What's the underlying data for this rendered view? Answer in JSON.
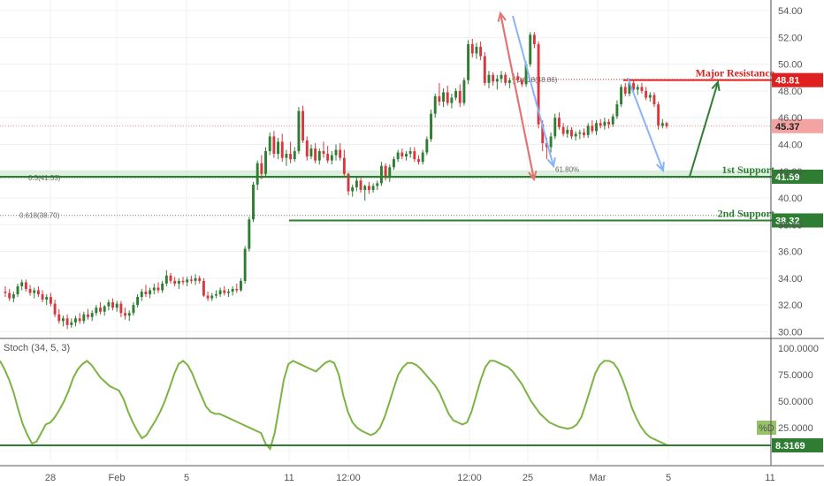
{
  "chart_data": {
    "type": "candlestick",
    "price": {
      "ylim": [
        29.5,
        54.8
      ],
      "yticks": [
        "54.00",
        "52.00",
        "50.00",
        "48.00",
        "46.00",
        "44.00",
        "42.00",
        "40.00",
        "38.00",
        "36.00",
        "34.00",
        "32.00",
        "30.00"
      ],
      "last_price": "45.37",
      "last_price_value": 45.37,
      "ohlc": [
        [
          33.0,
          33.4,
          32.6,
          32.9
        ],
        [
          32.9,
          33.2,
          32.3,
          32.5
        ],
        [
          32.5,
          33.0,
          32.2,
          32.8
        ],
        [
          32.8,
          33.6,
          32.6,
          33.4
        ],
        [
          33.4,
          33.9,
          33.1,
          33.7
        ],
        [
          33.7,
          33.9,
          33.0,
          33.2
        ],
        [
          33.2,
          33.5,
          32.7,
          32.9
        ],
        [
          32.9,
          33.3,
          32.5,
          33.1
        ],
        [
          33.1,
          33.4,
          32.6,
          32.8
        ],
        [
          32.8,
          33.1,
          32.2,
          32.4
        ],
        [
          32.4,
          32.8,
          32.0,
          32.6
        ],
        [
          32.6,
          32.9,
          31.9,
          32.1
        ],
        [
          32.1,
          32.4,
          31.1,
          31.3
        ],
        [
          31.3,
          31.7,
          30.6,
          30.8
        ],
        [
          30.8,
          31.2,
          30.4,
          31.0
        ],
        [
          31.0,
          31.3,
          30.2,
          30.5
        ],
        [
          30.5,
          31.0,
          30.3,
          30.7
        ],
        [
          30.7,
          31.2,
          30.4,
          31.0
        ],
        [
          31.0,
          31.4,
          30.6,
          30.8
        ],
        [
          30.8,
          31.5,
          30.6,
          31.3
        ],
        [
          31.3,
          31.7,
          30.9,
          31.1
        ],
        [
          31.1,
          31.6,
          30.8,
          31.4
        ],
        [
          31.4,
          32.0,
          31.2,
          31.8
        ],
        [
          31.8,
          32.2,
          31.3,
          31.5
        ],
        [
          31.5,
          32.0,
          31.2,
          31.9
        ],
        [
          31.9,
          32.4,
          31.6,
          32.2
        ],
        [
          32.2,
          32.5,
          31.6,
          31.8
        ],
        [
          31.8,
          32.3,
          31.5,
          32.1
        ],
        [
          32.1,
          32.3,
          31.1,
          31.4
        ],
        [
          31.4,
          31.8,
          30.9,
          31.2
        ],
        [
          31.2,
          31.6,
          30.8,
          31.4
        ],
        [
          31.4,
          32.2,
          31.2,
          32.0
        ],
        [
          32.0,
          32.8,
          31.8,
          32.6
        ],
        [
          32.6,
          33.2,
          32.3,
          33.0
        ],
        [
          33.0,
          33.5,
          32.6,
          32.8
        ],
        [
          32.8,
          33.3,
          32.5,
          33.1
        ],
        [
          33.1,
          33.6,
          32.8,
          33.3
        ],
        [
          33.3,
          33.7,
          32.9,
          33.1
        ],
        [
          33.1,
          33.8,
          32.9,
          33.6
        ],
        [
          33.6,
          34.6,
          33.4,
          34.2
        ],
        [
          34.2,
          34.4,
          33.6,
          33.8
        ],
        [
          33.8,
          34.1,
          33.4,
          33.6
        ],
        [
          33.6,
          34.0,
          33.2,
          33.8
        ],
        [
          33.8,
          34.1,
          33.5,
          33.7
        ],
        [
          33.7,
          34.1,
          33.4,
          33.9
        ],
        [
          33.9,
          34.2,
          33.6,
          33.8
        ],
        [
          33.8,
          34.3,
          33.5,
          34.0
        ],
        [
          34.0,
          34.2,
          33.6,
          33.8
        ],
        [
          33.8,
          34.0,
          32.6,
          32.7
        ],
        [
          32.7,
          33.0,
          32.3,
          32.5
        ],
        [
          32.5,
          32.9,
          32.3,
          32.7
        ],
        [
          32.7,
          33.1,
          32.5,
          32.8
        ],
        [
          32.8,
          33.3,
          32.6,
          33.1
        ],
        [
          33.1,
          33.4,
          32.7,
          32.9
        ],
        [
          32.9,
          33.2,
          32.6,
          33.0
        ],
        [
          33.0,
          33.4,
          32.7,
          33.2
        ],
        [
          33.2,
          33.6,
          32.9,
          33.1
        ],
        [
          33.1,
          34.0,
          33.0,
          33.8
        ],
        [
          33.8,
          36.4,
          33.6,
          36.2
        ],
        [
          36.2,
          38.6,
          36.0,
          38.4
        ],
        [
          38.4,
          41.2,
          38.2,
          41.0
        ],
        [
          41.0,
          42.8,
          40.6,
          42.6
        ],
        [
          42.6,
          43.2,
          41.4,
          41.8
        ],
        [
          41.8,
          43.8,
          41.6,
          43.5
        ],
        [
          43.5,
          44.9,
          43.2,
          44.6
        ],
        [
          44.6,
          45.0,
          43.0,
          43.3
        ],
        [
          43.3,
          44.5,
          42.9,
          44.2
        ],
        [
          44.2,
          44.8,
          42.7,
          43.0
        ],
        [
          43.0,
          43.6,
          42.4,
          43.3
        ],
        [
          43.3,
          44.2,
          42.6,
          42.9
        ],
        [
          42.9,
          43.8,
          42.7,
          43.5
        ],
        [
          43.5,
          46.8,
          43.3,
          46.5
        ],
        [
          46.5,
          46.9,
          44.1,
          44.3
        ],
        [
          44.3,
          44.6,
          42.8,
          43.1
        ],
        [
          43.1,
          44.0,
          42.9,
          43.7
        ],
        [
          43.7,
          44.1,
          42.6,
          42.8
        ],
        [
          42.8,
          43.7,
          42.5,
          43.5
        ],
        [
          43.5,
          44.2,
          43.0,
          43.3
        ],
        [
          43.3,
          43.9,
          42.6,
          42.8
        ],
        [
          42.8,
          43.5,
          42.5,
          43.2
        ],
        [
          43.2,
          44.0,
          42.8,
          43.6
        ],
        [
          43.6,
          44.1,
          42.8,
          43.0
        ],
        [
          43.0,
          43.6,
          41.6,
          41.8
        ],
        [
          41.8,
          41.9,
          40.2,
          40.5
        ],
        [
          40.5,
          41.0,
          40.1,
          40.8
        ],
        [
          40.8,
          41.6,
          40.5,
          41.3
        ],
        [
          41.3,
          41.5,
          40.4,
          40.6
        ],
        [
          40.6,
          41.0,
          39.8,
          40.9
        ],
        [
          40.9,
          41.2,
          40.3,
          40.6
        ],
        [
          40.6,
          41.1,
          40.4,
          40.9
        ],
        [
          40.9,
          41.3,
          40.6,
          41.1
        ],
        [
          41.1,
          42.7,
          40.9,
          42.4
        ],
        [
          42.4,
          42.6,
          41.3,
          41.5
        ],
        [
          41.5,
          42.5,
          41.2,
          42.3
        ],
        [
          42.3,
          43.1,
          42.1,
          42.9
        ],
        [
          42.9,
          43.6,
          42.7,
          43.4
        ],
        [
          43.4,
          43.7,
          42.9,
          43.1
        ],
        [
          43.1,
          43.5,
          42.8,
          43.3
        ],
        [
          43.3,
          43.8,
          43.0,
          43.5
        ],
        [
          43.5,
          43.8,
          42.7,
          42.9
        ],
        [
          42.9,
          43.2,
          42.5,
          42.7
        ],
        [
          42.7,
          43.6,
          42.5,
          43.4
        ],
        [
          43.4,
          44.6,
          43.2,
          44.4
        ],
        [
          44.4,
          46.6,
          44.2,
          46.3
        ],
        [
          46.3,
          47.8,
          46.0,
          47.6
        ],
        [
          47.6,
          48.6,
          46.9,
          47.2
        ],
        [
          47.2,
          48.2,
          46.8,
          47.9
        ],
        [
          47.9,
          48.4,
          46.9,
          47.1
        ],
        [
          47.1,
          47.8,
          46.7,
          47.5
        ],
        [
          47.5,
          48.2,
          47.3,
          48.0
        ],
        [
          48.0,
          48.5,
          46.8,
          47.1
        ],
        [
          47.1,
          49.0,
          46.9,
          48.8
        ],
        [
          48.8,
          51.8,
          48.5,
          51.5
        ],
        [
          51.5,
          51.9,
          50.5,
          50.8
        ],
        [
          50.8,
          51.6,
          50.4,
          51.3
        ],
        [
          51.3,
          51.7,
          50.3,
          50.6
        ],
        [
          50.6,
          50.9,
          48.4,
          48.6
        ],
        [
          48.6,
          49.5,
          48.2,
          49.2
        ],
        [
          49.2,
          49.4,
          48.4,
          48.7
        ],
        [
          48.7,
          49.2,
          48.1,
          48.9
        ],
        [
          48.9,
          49.5,
          48.6,
          49.2
        ],
        [
          49.2,
          49.4,
          48.4,
          48.6
        ],
        [
          48.6,
          49.0,
          48.2,
          48.8
        ],
        [
          48.8,
          49.3,
          48.5,
          49.1
        ],
        [
          49.1,
          49.4,
          48.6,
          48.8
        ],
        [
          48.8,
          49.0,
          48.3,
          48.5
        ],
        [
          48.5,
          50.2,
          48.3,
          50.0
        ],
        [
          50.0,
          52.4,
          49.8,
          52.2
        ],
        [
          52.2,
          52.4,
          51.2,
          51.5
        ],
        [
          51.5,
          51.7,
          45.2,
          45.5
        ],
        [
          45.5,
          45.8,
          43.5,
          44.1
        ],
        [
          44.1,
          44.5,
          42.9,
          43.8
        ],
        [
          43.8,
          44.9,
          43.4,
          44.6
        ],
        [
          44.6,
          46.3,
          44.4,
          46.0
        ],
        [
          46.0,
          46.4,
          45.1,
          45.3
        ],
        [
          45.3,
          45.6,
          44.6,
          44.8
        ],
        [
          44.8,
          45.4,
          44.5,
          45.1
        ],
        [
          45.1,
          45.3,
          44.4,
          44.6
        ],
        [
          44.6,
          45.0,
          44.3,
          44.8
        ],
        [
          44.8,
          45.1,
          44.4,
          44.9
        ],
        [
          44.9,
          45.2,
          44.5,
          44.7
        ],
        [
          44.7,
          45.6,
          44.5,
          45.4
        ],
        [
          45.4,
          45.8,
          44.8,
          45.0
        ],
        [
          45.0,
          45.8,
          44.7,
          45.6
        ],
        [
          45.6,
          45.9,
          45.2,
          45.4
        ],
        [
          45.4,
          46.0,
          45.1,
          45.7
        ],
        [
          45.7,
          45.9,
          45.2,
          45.5
        ],
        [
          45.5,
          46.3,
          45.3,
          46.1
        ],
        [
          46.1,
          47.3,
          45.9,
          47.0
        ],
        [
          47.0,
          48.5,
          46.8,
          48.3
        ],
        [
          48.3,
          48.6,
          47.6,
          47.8
        ],
        [
          47.8,
          48.9,
          47.6,
          48.6
        ],
        [
          48.6,
          48.8,
          47.9,
          48.1
        ],
        [
          48.1,
          48.5,
          47.7,
          48.3
        ],
        [
          48.3,
          48.6,
          47.8,
          48.0
        ],
        [
          48.0,
          48.3,
          47.3,
          47.5
        ],
        [
          47.5,
          47.9,
          47.2,
          47.7
        ],
        [
          47.7,
          47.9,
          46.8,
          47.0
        ],
        [
          47.0,
          47.2,
          45.1,
          45.4
        ],
        [
          45.4,
          45.9,
          45.2,
          45.6
        ],
        [
          45.6,
          45.7,
          45.2,
          45.37
        ]
      ],
      "levels": [
        {
          "label": "Major Resistance",
          "value": 48.81,
          "tag": "48.81",
          "color": "#e0201f"
        },
        {
          "label": "1st Support",
          "value": 41.59,
          "tag": "41.59",
          "color": "#2e7d32"
        },
        {
          "label": "2nd Support",
          "value": 38.32,
          "tag": "38.32",
          "color": "#2e7d32"
        }
      ],
      "fib_labels": {
        "fib_0618_top": "0.618(48.86)",
        "fib_05": "0.5(41.53)",
        "fib_0618_mid": "0.618(38.70)",
        "fib_618pct": "61.80%"
      }
    },
    "stochastic": {
      "title": "Stoch (34, 5, 3)",
      "ylim": [
        0,
        100
      ],
      "yticks": [
        "100.0000",
        "75.0000",
        "50.0000",
        "25.0000"
      ],
      "last_value": "8.3169",
      "d_label": "%D",
      "values": [
        88,
        80,
        70,
        58,
        42,
        28,
        18,
        10,
        12,
        20,
        28,
        30,
        35,
        42,
        50,
        60,
        72,
        80,
        85,
        88,
        84,
        78,
        72,
        68,
        64,
        62,
        60,
        52,
        40,
        30,
        22,
        15,
        18,
        25,
        32,
        40,
        50,
        62,
        75,
        85,
        88,
        84,
        76,
        65,
        55,
        45,
        40,
        38,
        38,
        36,
        34,
        32,
        30,
        28,
        26,
        24,
        22,
        20,
        10,
        5,
        20,
        45,
        70,
        85,
        88,
        86,
        84,
        82,
        80,
        78,
        82,
        86,
        88,
        86,
        75,
        55,
        40,
        30,
        25,
        22,
        20,
        18,
        20,
        25,
        35,
        48,
        62,
        75,
        82,
        86,
        86,
        84,
        80,
        75,
        70,
        65,
        58,
        48,
        38,
        32,
        30,
        28,
        30,
        40,
        55,
        70,
        82,
        88,
        88,
        86,
        84,
        82,
        78,
        72,
        66,
        58,
        50,
        44,
        38,
        34,
        30,
        28,
        26,
        25,
        24,
        25,
        28,
        35,
        48,
        62,
        76,
        84,
        88,
        88,
        86,
        80,
        70,
        58,
        44,
        34,
        26,
        20,
        16,
        14,
        12,
        10,
        8
      ]
    },
    "x_ticks": [
      {
        "label": "28",
        "px": 57
      },
      {
        "label": "Feb",
        "px": 132
      },
      {
        "label": "5",
        "px": 211
      },
      {
        "label": "11",
        "px": 327
      },
      {
        "label": "12:00",
        "px": 394
      },
      {
        "label": "12:00",
        "px": 531
      },
      {
        "label": "25",
        "px": 597
      },
      {
        "label": "Mar",
        "px": 676
      },
      {
        "label": "5",
        "px": 756
      },
      {
        "label": "11",
        "px": 871
      }
    ],
    "colors": {
      "up": "#2e7d32",
      "down": "#d9363e",
      "stoch": "#7cb342",
      "support": "#2e7d32",
      "resistance": "#e0201f",
      "arrow_red": "#e57373",
      "arrow_blue": "#8ab4f8"
    }
  }
}
